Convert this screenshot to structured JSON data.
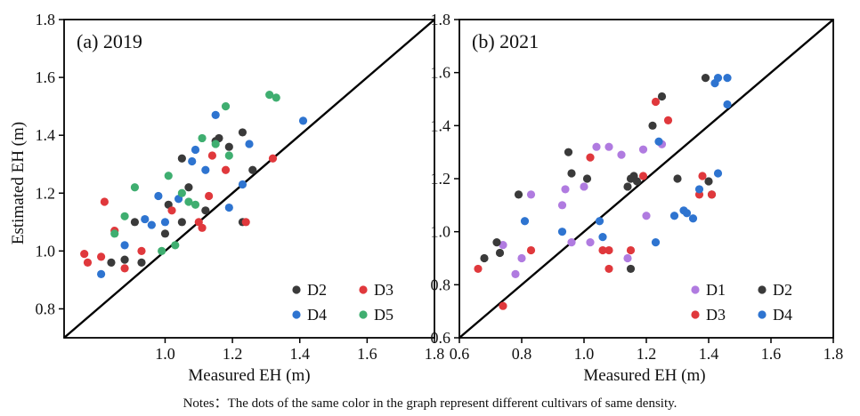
{
  "note": "Notes：The dots of the same color in the graph represent different cultivars of same density.",
  "shared": {
    "ylabel": "Estimated EH (m)",
    "xlabel": "Measured EH (m)"
  },
  "colors": {
    "D1": "#b07be0",
    "D2": "#3a3a3a",
    "D3": "#e0383c",
    "D4": "#2e74d0",
    "D5": "#3fae70",
    "axis": "#000000"
  },
  "chart_data": [
    {
      "type": "scatter",
      "title": "(a) 2019",
      "xlabel": "Measured EH (m)",
      "ylabel": "Estimated EH (m)",
      "xlim": [
        0.7,
        1.8
      ],
      "ylim": [
        0.7,
        1.8
      ],
      "xticks": [
        "1.0",
        "1.2",
        "1.4",
        "1.6",
        "1.8"
      ],
      "yticks": [
        "0.8",
        "1.0",
        "1.2",
        "1.4",
        "1.6",
        "1.8"
      ],
      "identity_line": true,
      "legend": {
        "position": "bottom-right",
        "order": [
          "D2",
          "D3",
          "D4",
          "D5"
        ]
      },
      "series": [
        {
          "name": "D2",
          "color": "#3a3a3a",
          "points": [
            [
              0.84,
              0.96
            ],
            [
              0.88,
              0.97
            ],
            [
              0.91,
              1.1
            ],
            [
              0.93,
              0.96
            ],
            [
              1.0,
              1.06
            ],
            [
              1.01,
              1.16
            ],
            [
              1.05,
              1.1
            ],
            [
              1.05,
              1.32
            ],
            [
              1.07,
              1.22
            ],
            [
              1.12,
              1.14
            ],
            [
              1.15,
              1.38
            ],
            [
              1.16,
              1.39
            ],
            [
              1.19,
              1.36
            ],
            [
              1.23,
              1.1
            ],
            [
              1.23,
              1.41
            ],
            [
              1.26,
              1.28
            ]
          ]
        },
        {
          "name": "D3",
          "color": "#e0383c",
          "points": [
            [
              0.76,
              0.99
            ],
            [
              0.77,
              0.96
            ],
            [
              0.81,
              0.98
            ],
            [
              0.82,
              1.17
            ],
            [
              0.85,
              1.07
            ],
            [
              0.88,
              0.94
            ],
            [
              0.93,
              1.0
            ],
            [
              1.02,
              1.14
            ],
            [
              1.1,
              1.1
            ],
            [
              1.11,
              1.08
            ],
            [
              1.13,
              1.19
            ],
            [
              1.14,
              1.33
            ],
            [
              1.18,
              1.28
            ],
            [
              1.24,
              1.1
            ],
            [
              1.32,
              1.32
            ]
          ]
        },
        {
          "name": "D4",
          "color": "#2e74d0",
          "points": [
            [
              0.81,
              0.92
            ],
            [
              0.88,
              1.02
            ],
            [
              0.94,
              1.11
            ],
            [
              0.96,
              1.09
            ],
            [
              0.98,
              1.19
            ],
            [
              1.0,
              1.1
            ],
            [
              1.04,
              1.18
            ],
            [
              1.08,
              1.31
            ],
            [
              1.09,
              1.35
            ],
            [
              1.12,
              1.28
            ],
            [
              1.15,
              1.47
            ],
            [
              1.19,
              1.15
            ],
            [
              1.23,
              1.23
            ],
            [
              1.25,
              1.37
            ],
            [
              1.41,
              1.45
            ]
          ]
        },
        {
          "name": "D5",
          "color": "#3fae70",
          "points": [
            [
              0.85,
              1.06
            ],
            [
              0.88,
              1.12
            ],
            [
              0.91,
              1.22
            ],
            [
              0.99,
              1.0
            ],
            [
              1.01,
              1.26
            ],
            [
              1.03,
              1.02
            ],
            [
              1.05,
              1.2
            ],
            [
              1.07,
              1.17
            ],
            [
              1.09,
              1.16
            ],
            [
              1.11,
              1.39
            ],
            [
              1.15,
              1.37
            ],
            [
              1.18,
              1.5
            ],
            [
              1.19,
              1.33
            ],
            [
              1.31,
              1.54
            ],
            [
              1.33,
              1.53
            ]
          ]
        }
      ]
    },
    {
      "type": "scatter",
      "title": "(b) 2021",
      "xlabel": "Measured EH (m)",
      "ylabel": "",
      "xlim": [
        0.6,
        1.8
      ],
      "ylim": [
        0.6,
        1.8
      ],
      "xticks": [
        "0.6",
        "0.8",
        "1.0",
        "1.2",
        "1.4",
        "1.6",
        "1.8"
      ],
      "yticks": [
        "0.6",
        "0.8",
        "1.0",
        "1.2",
        "1.4",
        "1.6",
        "1.8"
      ],
      "identity_line": true,
      "legend": {
        "position": "bottom-right",
        "order": [
          "D1",
          "D2",
          "D3",
          "D4"
        ]
      },
      "series": [
        {
          "name": "D1",
          "color": "#b07be0",
          "points": [
            [
              0.74,
              0.95
            ],
            [
              0.78,
              0.84
            ],
            [
              0.8,
              0.9
            ],
            [
              0.83,
              1.14
            ],
            [
              0.93,
              1.1
            ],
            [
              0.94,
              1.16
            ],
            [
              0.96,
              0.96
            ],
            [
              1.0,
              1.17
            ],
            [
              1.02,
              0.96
            ],
            [
              1.04,
              1.32
            ],
            [
              1.08,
              1.32
            ],
            [
              1.12,
              1.29
            ],
            [
              1.14,
              0.9
            ],
            [
              1.19,
              1.31
            ],
            [
              1.2,
              1.06
            ],
            [
              1.25,
              1.33
            ]
          ]
        },
        {
          "name": "D2",
          "color": "#3a3a3a",
          "points": [
            [
              0.68,
              0.9
            ],
            [
              0.72,
              0.96
            ],
            [
              0.73,
              0.92
            ],
            [
              0.79,
              1.14
            ],
            [
              0.95,
              1.3
            ],
            [
              0.96,
              1.22
            ],
            [
              1.01,
              1.2
            ],
            [
              1.14,
              1.17
            ],
            [
              1.15,
              1.2
            ],
            [
              1.16,
              1.21
            ],
            [
              1.17,
              1.19
            ],
            [
              1.22,
              1.4
            ],
            [
              1.25,
              1.51
            ],
            [
              1.3,
              1.2
            ],
            [
              1.39,
              1.58
            ],
            [
              1.4,
              1.19
            ],
            [
              1.41,
              1.14
            ],
            [
              1.15,
              0.86
            ]
          ]
        },
        {
          "name": "D3",
          "color": "#e0383c",
          "points": [
            [
              0.66,
              0.86
            ],
            [
              0.74,
              0.72
            ],
            [
              0.83,
              0.93
            ],
            [
              1.02,
              1.28
            ],
            [
              1.06,
              0.93
            ],
            [
              1.08,
              0.93
            ],
            [
              1.08,
              0.86
            ],
            [
              1.15,
              0.93
            ],
            [
              1.19,
              1.21
            ],
            [
              1.23,
              1.49
            ],
            [
              1.27,
              1.42
            ],
            [
              1.37,
              1.14
            ],
            [
              1.38,
              1.21
            ],
            [
              1.41,
              1.14
            ]
          ]
        },
        {
          "name": "D4",
          "color": "#2e74d0",
          "points": [
            [
              0.81,
              1.04
            ],
            [
              0.93,
              1.0
            ],
            [
              1.05,
              1.04
            ],
            [
              1.06,
              0.98
            ],
            [
              1.23,
              0.96
            ],
            [
              1.24,
              1.34
            ],
            [
              1.29,
              1.06
            ],
            [
              1.32,
              1.08
            ],
            [
              1.33,
              1.07
            ],
            [
              1.35,
              1.05
            ],
            [
              1.37,
              1.16
            ],
            [
              1.42,
              1.56
            ],
            [
              1.43,
              1.58
            ],
            [
              1.43,
              1.22
            ],
            [
              1.46,
              1.48
            ],
            [
              1.46,
              1.58
            ]
          ]
        }
      ]
    }
  ]
}
